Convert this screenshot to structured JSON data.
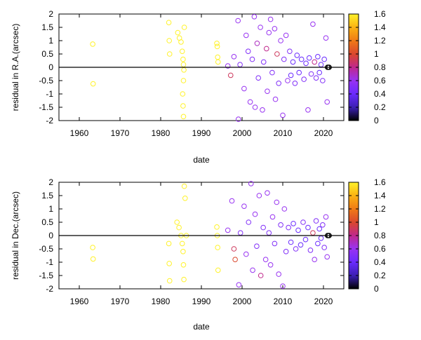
{
  "chart_data": [
    {
      "type": "scatter",
      "xlabel": "date",
      "ylabel": "residual in R.A.(arcsec)",
      "xlim": [
        1955,
        2025
      ],
      "ylim": [
        -2,
        2
      ],
      "x_ticks": [
        1960,
        1970,
        1980,
        1990,
        2000,
        2010,
        2020
      ],
      "y_ticks": [
        -2,
        -1.5,
        -1,
        -0.5,
        0,
        0.5,
        1,
        1.5,
        2
      ],
      "x_tick_labels": [
        "1960",
        "1970",
        "1980",
        "1990",
        "2000",
        "2010",
        "2020"
      ],
      "y_tick_labels": [
        "-2",
        "-1.5",
        "-1",
        "-0.5",
        "0",
        "0.5",
        "1",
        "1.5",
        "2"
      ],
      "grid": false,
      "colorbar": {
        "range": [
          0,
          1.6
        ],
        "ticks": [
          0,
          0.2,
          0.4,
          0.6,
          0.8,
          1,
          1.2,
          1.4,
          1.6
        ],
        "tick_labels": [
          "0",
          "0.2",
          "0.4",
          "0.6",
          "0.8",
          "1",
          "1.2",
          "1.4",
          "1.6"
        ]
      },
      "zero_line": 0,
      "sample_points": [
        {
          "x": 1963.3,
          "y": 0.87,
          "c": 1.6
        },
        {
          "x": 1963.4,
          "y": -0.62,
          "c": 1.6
        },
        {
          "x": 1982.0,
          "y": 1.68,
          "c": 1.6
        },
        {
          "x": 1982.1,
          "y": 1.0,
          "c": 1.6
        },
        {
          "x": 1982.2,
          "y": 0.5,
          "c": 1.6
        },
        {
          "x": 1984.2,
          "y": 1.3,
          "c": 1.6
        },
        {
          "x": 1984.6,
          "y": 1.1,
          "c": 1.6
        },
        {
          "x": 1985.0,
          "y": 0.95,
          "c": 1.6
        },
        {
          "x": 1985.3,
          "y": 0.6,
          "c": 1.6
        },
        {
          "x": 1985.5,
          "y": 0.3,
          "c": 1.6
        },
        {
          "x": 1985.6,
          "y": 0.1,
          "c": 1.6
        },
        {
          "x": 1985.7,
          "y": -0.1,
          "c": 1.6
        },
        {
          "x": 1985.6,
          "y": -0.5,
          "c": 1.6
        },
        {
          "x": 1985.4,
          "y": -1.0,
          "c": 1.6
        },
        {
          "x": 1985.5,
          "y": -1.45,
          "c": 1.6
        },
        {
          "x": 1985.6,
          "y": -1.85,
          "c": 1.6
        },
        {
          "x": 1985.8,
          "y": 1.5,
          "c": 1.6
        },
        {
          "x": 1993.8,
          "y": 0.9,
          "c": 1.6
        },
        {
          "x": 1993.9,
          "y": 0.78,
          "c": 1.6
        },
        {
          "x": 1994.0,
          "y": 0.38,
          "c": 1.6
        },
        {
          "x": 1994.1,
          "y": 0.2,
          "c": 1.6
        },
        {
          "x": 1996.5,
          "y": 0.05,
          "c": 0.6
        },
        {
          "x": 1997.2,
          "y": -0.3,
          "c": 0.9
        },
        {
          "x": 1998.0,
          "y": 0.4,
          "c": 0.6
        },
        {
          "x": 1999.0,
          "y": 1.75,
          "c": 0.6
        },
        {
          "x": 1999.1,
          "y": -1.95,
          "c": 0.6
        },
        {
          "x": 1999.5,
          "y": 0.1,
          "c": 0.5
        },
        {
          "x": 2000.5,
          "y": -0.8,
          "c": 0.6
        },
        {
          "x": 2001.0,
          "y": 1.2,
          "c": 0.6
        },
        {
          "x": 2001.5,
          "y": 0.6,
          "c": 0.5
        },
        {
          "x": 2002.0,
          "y": -1.3,
          "c": 0.6
        },
        {
          "x": 2002.5,
          "y": 0.3,
          "c": 0.5
        },
        {
          "x": 2003.0,
          "y": 1.9,
          "c": 0.6
        },
        {
          "x": 2003.2,
          "y": -1.5,
          "c": 0.6
        },
        {
          "x": 2003.7,
          "y": 0.9,
          "c": 0.7
        },
        {
          "x": 2004.0,
          "y": -0.4,
          "c": 0.5
        },
        {
          "x": 2004.5,
          "y": 1.5,
          "c": 0.6
        },
        {
          "x": 2005.0,
          "y": -1.6,
          "c": 0.6
        },
        {
          "x": 2005.3,
          "y": 0.2,
          "c": 0.5
        },
        {
          "x": 2006.0,
          "y": 0.7,
          "c": 0.8
        },
        {
          "x": 2006.2,
          "y": -0.9,
          "c": 0.6
        },
        {
          "x": 2006.6,
          "y": 1.3,
          "c": 0.6
        },
        {
          "x": 2007.0,
          "y": 1.8,
          "c": 0.6
        },
        {
          "x": 2007.4,
          "y": -0.2,
          "c": 0.5
        },
        {
          "x": 2008.0,
          "y": 1.45,
          "c": 0.6
        },
        {
          "x": 2008.2,
          "y": -1.2,
          "c": 0.6
        },
        {
          "x": 2008.6,
          "y": 0.5,
          "c": 0.9
        },
        {
          "x": 2009.0,
          "y": -0.6,
          "c": 0.5
        },
        {
          "x": 2009.5,
          "y": 1.0,
          "c": 0.6
        },
        {
          "x": 2010.0,
          "y": -1.8,
          "c": 0.6
        },
        {
          "x": 2010.3,
          "y": 0.3,
          "c": 0.5
        },
        {
          "x": 2010.8,
          "y": 1.2,
          "c": 0.6
        },
        {
          "x": 2011.2,
          "y": -0.5,
          "c": 0.6
        },
        {
          "x": 2011.7,
          "y": 0.6,
          "c": 0.5
        },
        {
          "x": 2012.0,
          "y": -0.3,
          "c": 0.4
        },
        {
          "x": 2012.5,
          "y": 0.2,
          "c": 0.4
        },
        {
          "x": 2013.0,
          "y": -0.6,
          "c": 0.5
        },
        {
          "x": 2013.5,
          "y": 0.45,
          "c": 0.4
        },
        {
          "x": 2014.0,
          "y": -0.2,
          "c": 0.4
        },
        {
          "x": 2014.6,
          "y": 0.3,
          "c": 0.4
        },
        {
          "x": 2015.2,
          "y": -0.45,
          "c": 0.5
        },
        {
          "x": 2015.7,
          "y": 0.15,
          "c": 0.4
        },
        {
          "x": 2016.2,
          "y": -1.6,
          "c": 0.6
        },
        {
          "x": 2016.5,
          "y": 0.35,
          "c": 0.4
        },
        {
          "x": 2017.0,
          "y": -0.25,
          "c": 0.5
        },
        {
          "x": 2017.4,
          "y": 1.62,
          "c": 0.6
        },
        {
          "x": 2017.8,
          "y": 0.2,
          "c": 0.8
        },
        {
          "x": 2018.2,
          "y": -0.4,
          "c": 0.5
        },
        {
          "x": 2018.6,
          "y": 0.4,
          "c": 0.4
        },
        {
          "x": 2019.0,
          "y": -0.2,
          "c": 0.4
        },
        {
          "x": 2019.4,
          "y": 0.1,
          "c": 0.4
        },
        {
          "x": 2019.8,
          "y": -0.5,
          "c": 0.5
        },
        {
          "x": 2020.2,
          "y": 0.3,
          "c": 0.4
        },
        {
          "x": 2020.6,
          "y": 1.1,
          "c": 0.6
        },
        {
          "x": 2020.9,
          "y": -1.3,
          "c": 0.6
        },
        {
          "x": 2021.0,
          "y": 0.0,
          "c": 0.0
        },
        {
          "x": 2021.2,
          "y": 0.0,
          "c": 0.0
        },
        {
          "x": 2021.4,
          "y": 0.0,
          "c": 0.0
        }
      ]
    },
    {
      "type": "scatter",
      "xlabel": "date",
      "ylabel": "residual in Dec.(arcsec)",
      "xlim": [
        1955,
        2025
      ],
      "ylim": [
        -2,
        2
      ],
      "x_ticks": [
        1960,
        1970,
        1980,
        1990,
        2000,
        2010,
        2020
      ],
      "y_ticks": [
        -2,
        -1.5,
        -1,
        -0.5,
        0,
        0.5,
        1,
        1.5,
        2
      ],
      "x_tick_labels": [
        "1960",
        "1970",
        "1980",
        "1990",
        "2000",
        "2010",
        "2020"
      ],
      "y_tick_labels": [
        "-2",
        "-1.5",
        "-1",
        "-0.5",
        "0",
        "0.5",
        "1",
        "1.5",
        "2"
      ],
      "grid": false,
      "colorbar": {
        "range": [
          0,
          1.6
        ],
        "ticks": [
          0,
          0.2,
          0.4,
          0.6,
          0.8,
          1,
          1.2,
          1.4,
          1.6
        ],
        "tick_labels": [
          "0",
          "0.2",
          "0.4",
          "0.6",
          "0.8",
          "1",
          "1.2",
          "1.4",
          "1.6"
        ]
      },
      "zero_line": 0,
      "sample_points": [
        {
          "x": 1963.3,
          "y": -0.45,
          "c": 1.6
        },
        {
          "x": 1963.4,
          "y": -0.88,
          "c": 1.6
        },
        {
          "x": 1982.0,
          "y": -0.3,
          "c": 1.6
        },
        {
          "x": 1982.1,
          "y": -1.05,
          "c": 1.6
        },
        {
          "x": 1982.2,
          "y": -1.7,
          "c": 1.6
        },
        {
          "x": 1984.0,
          "y": 0.5,
          "c": 1.6
        },
        {
          "x": 1984.5,
          "y": 0.3,
          "c": 1.6
        },
        {
          "x": 1985.0,
          "y": 0.0,
          "c": 1.6
        },
        {
          "x": 1985.3,
          "y": -0.3,
          "c": 1.6
        },
        {
          "x": 1985.5,
          "y": -0.6,
          "c": 1.6
        },
        {
          "x": 1985.6,
          "y": -1.1,
          "c": 1.6
        },
        {
          "x": 1985.7,
          "y": -1.65,
          "c": 1.6
        },
        {
          "x": 1985.8,
          "y": 1.85,
          "c": 1.6
        },
        {
          "x": 1986.0,
          "y": 1.4,
          "c": 1.6
        },
        {
          "x": 1986.3,
          "y": 0.0,
          "c": 1.6
        },
        {
          "x": 1993.8,
          "y": 0.32,
          "c": 1.6
        },
        {
          "x": 1993.9,
          "y": 0.0,
          "c": 1.6
        },
        {
          "x": 1994.0,
          "y": -0.45,
          "c": 1.6
        },
        {
          "x": 1994.1,
          "y": -1.3,
          "c": 1.6
        },
        {
          "x": 1996.5,
          "y": 0.2,
          "c": 0.6
        },
        {
          "x": 1997.5,
          "y": 1.3,
          "c": 0.6
        },
        {
          "x": 1998.0,
          "y": -0.5,
          "c": 0.9
        },
        {
          "x": 1998.3,
          "y": -0.9,
          "c": 1.0
        },
        {
          "x": 1999.2,
          "y": -1.85,
          "c": 0.6
        },
        {
          "x": 1999.6,
          "y": 0.1,
          "c": 0.5
        },
        {
          "x": 2000.5,
          "y": 1.1,
          "c": 0.6
        },
        {
          "x": 2001.0,
          "y": -0.7,
          "c": 0.6
        },
        {
          "x": 2001.6,
          "y": 0.5,
          "c": 0.5
        },
        {
          "x": 2002.2,
          "y": 1.95,
          "c": 0.6
        },
        {
          "x": 2002.6,
          "y": -1.3,
          "c": 0.6
        },
        {
          "x": 2003.2,
          "y": 0.8,
          "c": 0.6
        },
        {
          "x": 2003.6,
          "y": -0.4,
          "c": 0.5
        },
        {
          "x": 2004.2,
          "y": 1.5,
          "c": 0.6
        },
        {
          "x": 2004.6,
          "y": -1.5,
          "c": 0.8
        },
        {
          "x": 2005.2,
          "y": 0.3,
          "c": 0.5
        },
        {
          "x": 2005.8,
          "y": -0.9,
          "c": 0.6
        },
        {
          "x": 2006.2,
          "y": 1.6,
          "c": 0.6
        },
        {
          "x": 2006.6,
          "y": 0.1,
          "c": 0.5
        },
        {
          "x": 2007.0,
          "y": -1.1,
          "c": 0.6
        },
        {
          "x": 2007.5,
          "y": 0.7,
          "c": 0.6
        },
        {
          "x": 2008.0,
          "y": -0.3,
          "c": 0.5
        },
        {
          "x": 2008.5,
          "y": 1.25,
          "c": 0.6
        },
        {
          "x": 2009.0,
          "y": -1.45,
          "c": 0.6
        },
        {
          "x": 2009.5,
          "y": 0.4,
          "c": 0.5
        },
        {
          "x": 2010.0,
          "y": -1.9,
          "c": 0.6
        },
        {
          "x": 2010.4,
          "y": 1.0,
          "c": 0.6
        },
        {
          "x": 2010.8,
          "y": -0.6,
          "c": 0.5
        },
        {
          "x": 2011.4,
          "y": 0.3,
          "c": 0.5
        },
        {
          "x": 2012.0,
          "y": -0.25,
          "c": 0.4
        },
        {
          "x": 2012.6,
          "y": 0.45,
          "c": 0.4
        },
        {
          "x": 2013.2,
          "y": -0.5,
          "c": 0.5
        },
        {
          "x": 2013.8,
          "y": 0.2,
          "c": 0.4
        },
        {
          "x": 2014.4,
          "y": -0.35,
          "c": 0.4
        },
        {
          "x": 2015.0,
          "y": 0.5,
          "c": 0.5
        },
        {
          "x": 2015.6,
          "y": -0.15,
          "c": 0.4
        },
        {
          "x": 2016.2,
          "y": 0.3,
          "c": 0.4
        },
        {
          "x": 2016.8,
          "y": -0.55,
          "c": 0.5
        },
        {
          "x": 2017.4,
          "y": 0.1,
          "c": 0.9
        },
        {
          "x": 2017.8,
          "y": -0.9,
          "c": 0.6
        },
        {
          "x": 2018.2,
          "y": 0.55,
          "c": 0.5
        },
        {
          "x": 2018.6,
          "y": -0.3,
          "c": 0.4
        },
        {
          "x": 2019.0,
          "y": 0.25,
          "c": 0.4
        },
        {
          "x": 2019.4,
          "y": -0.1,
          "c": 0.4
        },
        {
          "x": 2019.8,
          "y": 0.4,
          "c": 0.5
        },
        {
          "x": 2020.2,
          "y": -0.45,
          "c": 0.5
        },
        {
          "x": 2020.6,
          "y": 0.7,
          "c": 0.6
        },
        {
          "x": 2020.9,
          "y": -0.8,
          "c": 0.6
        },
        {
          "x": 2021.0,
          "y": 0.0,
          "c": 0.0
        },
        {
          "x": 2021.2,
          "y": 0.0,
          "c": 0.0
        },
        {
          "x": 2021.4,
          "y": 0.0,
          "c": 0.0
        }
      ]
    }
  ]
}
